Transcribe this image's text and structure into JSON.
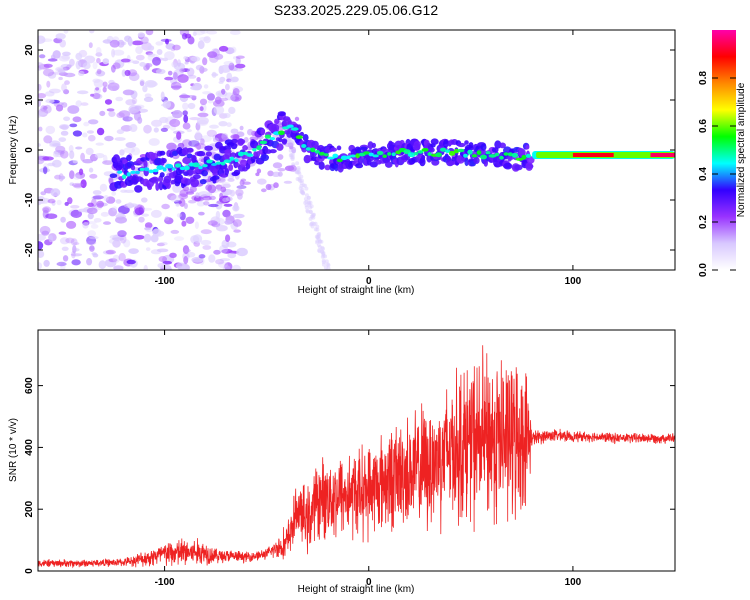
{
  "title": "S233.2025.229.05.06.G12",
  "chart_data": [
    {
      "type": "heatmap",
      "xlabel": "Height of straight line (km)",
      "ylabel": "Frequency (Hz)",
      "xlim": [
        -162,
        150
      ],
      "ylim": [
        -24,
        24
      ],
      "x_ticks": [
        -100,
        0,
        100
      ],
      "x_tick_labels": [
        "-100",
        "0",
        "100"
      ],
      "y_ticks": [
        -20,
        -10,
        0,
        10,
        20
      ],
      "y_tick_labels": [
        "-20",
        "-10",
        "0",
        "10",
        "20"
      ],
      "ridge": {
        "description_points_x_km": [
          -120,
          -105,
          -90,
          -75,
          -60,
          -50,
          -42,
          -36,
          -30,
          -20,
          -10,
          0,
          20,
          40,
          60,
          75,
          80,
          100,
          120,
          135,
          150
        ],
        "frequency_hz": [
          -5,
          -4,
          -3.5,
          -2.5,
          -1,
          2,
          4,
          4.5,
          0,
          -1.5,
          -1.5,
          -1,
          -0.5,
          -0.5,
          -1,
          -1.5,
          -1,
          -1,
          -1,
          -0.5,
          0
        ]
      },
      "colorbar": {
        "label": "Normalized spectral amplitude",
        "range": [
          0,
          1
        ],
        "ticks": [
          0.0,
          0.2,
          0.4,
          0.6,
          0.8
        ],
        "tick_labels": [
          "0.0",
          "0.2",
          "0.4",
          "0.6",
          "0.8"
        ]
      },
      "colors": [
        "#ffffff",
        "#d8c8ff",
        "#9933ff",
        "#3300ff",
        "#00ffff",
        "#00ff00",
        "#ffff00",
        "#ff8800",
        "#ff0000",
        "#ff00aa"
      ]
    },
    {
      "type": "line",
      "xlabel": "Height of straight line (km)",
      "ylabel": "SNR (10 * v/v)",
      "xlim": [
        -162,
        150
      ],
      "ylim": [
        0,
        780
      ],
      "x_ticks": [
        -100,
        0,
        100
      ],
      "x_tick_labels": [
        "-100",
        "0",
        "100"
      ],
      "y_ticks": [
        0,
        200,
        400,
        600
      ],
      "y_tick_labels": [
        "0",
        "200",
        "400",
        "600"
      ],
      "series": [
        {
          "name": "SNR",
          "color": "#ee2222",
          "x": [
            -162,
            -140,
            -120,
            -110,
            -100,
            -90,
            -80,
            -75,
            -60,
            -50,
            -45,
            -40,
            -35,
            -30,
            -25,
            -20,
            -10,
            0,
            10,
            20,
            30,
            40,
            50,
            60,
            70,
            78,
            80,
            90,
            100,
            110,
            120,
            130,
            140,
            150
          ],
          "y": [
            25,
            25,
            28,
            40,
            55,
            60,
            60,
            50,
            45,
            55,
            75,
            90,
            200,
            160,
            230,
            240,
            250,
            260,
            300,
            320,
            340,
            400,
            420,
            430,
            430,
            430,
            430,
            440,
            435,
            435,
            430,
            430,
            430,
            430
          ],
          "spread": [
            15,
            15,
            15,
            30,
            50,
            60,
            50,
            30,
            20,
            20,
            40,
            80,
            100,
            130,
            150,
            160,
            170,
            180,
            200,
            220,
            250,
            280,
            320,
            340,
            320,
            250,
            30,
            25,
            20,
            20,
            20,
            20,
            20,
            20
          ]
        }
      ]
    }
  ]
}
